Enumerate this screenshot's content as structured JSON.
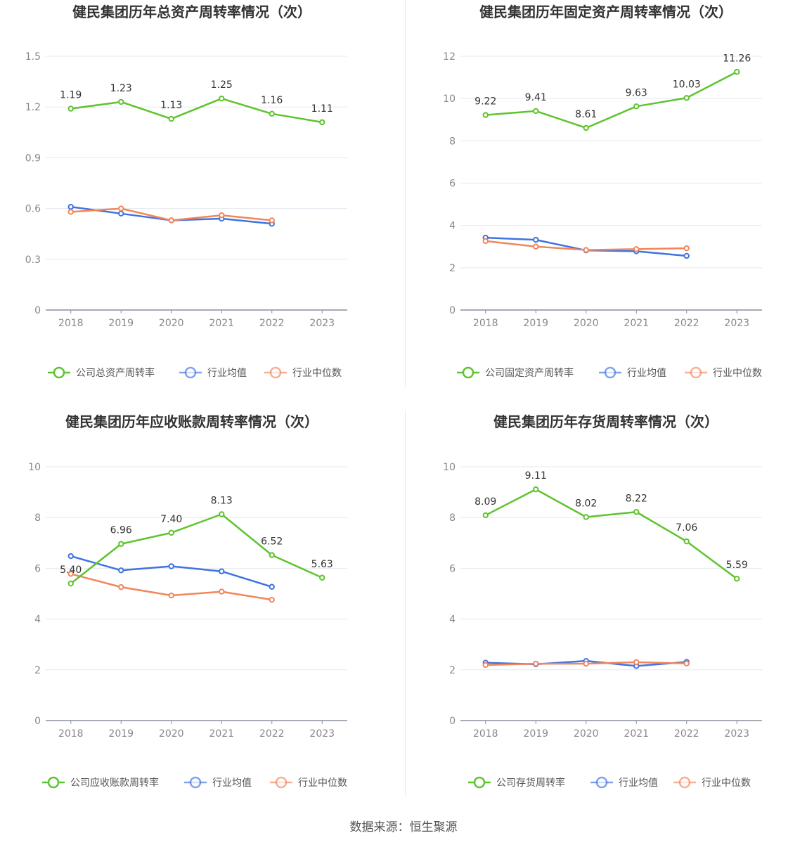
{
  "source": "数据来源：恒生聚源",
  "colors": {
    "company": "#5ec42e",
    "avg": "#3f73e0",
    "median": "#f2865a"
  },
  "chart_data": [
    {
      "type": "line",
      "title": "健民集团历年总资产周转率情况（次）",
      "categories": [
        "2018",
        "2019",
        "2020",
        "2021",
        "2022",
        "2023"
      ],
      "ylim": [
        0,
        1.5
      ],
      "yticks": [
        "0",
        "0.3",
        "0.6",
        "0.9",
        "1.2",
        "1.5"
      ],
      "series": [
        {
          "name": "公司总资产周转率",
          "values": [
            1.19,
            1.23,
            1.13,
            1.25,
            1.16,
            1.11
          ],
          "labels": [
            "1.19",
            "1.23",
            "1.13",
            "1.25",
            "1.16",
            "1.11"
          ]
        },
        {
          "name": "行业均值",
          "values": [
            0.61,
            0.57,
            0.53,
            0.54,
            0.51,
            null
          ]
        },
        {
          "name": "行业中位数",
          "values": [
            0.58,
            0.6,
            0.53,
            0.56,
            0.53,
            null
          ]
        }
      ]
    },
    {
      "type": "line",
      "title": "健民集团历年固定资产周转率情况（次）",
      "categories": [
        "2018",
        "2019",
        "2020",
        "2021",
        "2022",
        "2023"
      ],
      "ylim": [
        0,
        12
      ],
      "yticks": [
        "0",
        "2",
        "4",
        "6",
        "8",
        "10",
        "12"
      ],
      "series": [
        {
          "name": "公司固定资产周转率",
          "values": [
            9.22,
            9.41,
            8.61,
            9.63,
            10.03,
            11.26
          ],
          "labels": [
            "9.22",
            "9.41",
            "8.61",
            "9.63",
            "10.03",
            "11.26"
          ]
        },
        {
          "name": "行业均值",
          "values": [
            3.42,
            3.32,
            2.82,
            2.78,
            2.56,
            null
          ]
        },
        {
          "name": "行业中位数",
          "values": [
            3.26,
            3.0,
            2.84,
            2.88,
            2.92,
            null
          ]
        }
      ]
    },
    {
      "type": "line",
      "title": "健民集团历年应收账款周转率情况（次）",
      "categories": [
        "2018",
        "2019",
        "2020",
        "2021",
        "2022",
        "2023"
      ],
      "ylim": [
        0,
        10
      ],
      "yticks": [
        "0",
        "2",
        "4",
        "6",
        "8",
        "10"
      ],
      "series": [
        {
          "name": "公司应收账款周转率",
          "values": [
            5.4,
            6.96,
            7.4,
            8.13,
            6.52,
            5.63
          ],
          "labels": [
            "5.40",
            "6.96",
            "7.40",
            "8.13",
            "6.52",
            "5.63"
          ]
        },
        {
          "name": "行业均值",
          "values": [
            6.48,
            5.92,
            6.08,
            5.88,
            5.27,
            null
          ]
        },
        {
          "name": "行业中位数",
          "values": [
            5.78,
            5.26,
            4.93,
            5.08,
            4.76,
            null
          ]
        }
      ]
    },
    {
      "type": "line",
      "title": "健民集团历年存货周转率情况（次）",
      "categories": [
        "2018",
        "2019",
        "2020",
        "2021",
        "2022",
        "2023"
      ],
      "ylim": [
        0,
        10
      ],
      "yticks": [
        "0",
        "2",
        "4",
        "6",
        "8",
        "10"
      ],
      "series": [
        {
          "name": "公司存货周转率",
          "values": [
            8.09,
            9.11,
            8.02,
            8.22,
            7.06,
            5.59
          ],
          "labels": [
            "8.09",
            "9.11",
            "8.02",
            "8.22",
            "7.06",
            "5.59"
          ]
        },
        {
          "name": "行业均值",
          "values": [
            2.28,
            2.22,
            2.35,
            2.15,
            2.31,
            null
          ]
        },
        {
          "name": "行业中位数",
          "values": [
            2.19,
            2.24,
            2.24,
            2.3,
            2.25,
            null
          ]
        }
      ]
    }
  ]
}
